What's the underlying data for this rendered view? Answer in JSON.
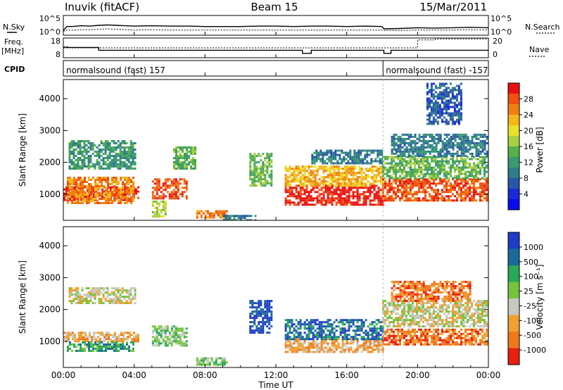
{
  "header": {
    "station": "Inuvik (fitACF)",
    "beam": "Beam 15",
    "date": "15/Mar/2011"
  },
  "left_labels": {
    "nsky": "N.Sky",
    "freq": "Freq.",
    "freq_unit": "[MHz]",
    "cpid": "CPID"
  },
  "right_labels": {
    "nsearch": "N.Search",
    "nave": "Nave"
  },
  "cpid_segments": [
    {
      "label": "normalsound (fast) 157",
      "start_hour": 0
    },
    {
      "label": "normalsound (fast) -157",
      "start_hour": 18.05
    }
  ],
  "chart_data": [
    {
      "type": "line",
      "name": "noise",
      "ytick_left": [
        "10^5",
        "10^0"
      ],
      "ytick_right": [
        "10^5",
        "10^0"
      ],
      "x": [
        0,
        0.2,
        0.5,
        1,
        1.5,
        2,
        2.5,
        3,
        3.5,
        4,
        5,
        6,
        7,
        8,
        9,
        10,
        11,
        12,
        13,
        14,
        15,
        16,
        17,
        18,
        18.1,
        19,
        20,
        21,
        22,
        23,
        24
      ],
      "sky": [
        1.2,
        2.2,
        2.2,
        2.4,
        2.3,
        2.5,
        2.6,
        2.5,
        2.4,
        2.3,
        2.4,
        2.3,
        2.3,
        2.2,
        2.2,
        2.2,
        2.3,
        2.3,
        2.2,
        2.3,
        2.3,
        2.2,
        2.3,
        2.2,
        1.6,
        1.7,
        1.9,
        1.8,
        1.9,
        2.0,
        1.9
      ],
      "search": [
        1.0,
        1.3,
        1.3,
        1.4,
        1.4,
        1.5,
        1.6,
        1.5,
        1.4,
        1.3,
        1.4,
        1.3,
        1.3,
        1.3,
        1.3,
        1.3,
        1.3,
        1.3,
        1.3,
        1.3,
        1.3,
        1.3,
        1.3,
        1.3,
        1.2,
        1.2,
        1.3,
        1.3,
        1.3,
        1.4,
        1.3
      ]
    },
    {
      "type": "line",
      "name": "frequency",
      "ytick_left": [
        "18",
        "8"
      ],
      "ytick_right": [
        "20",
        "0"
      ],
      "ylim_left": [
        8,
        18
      ],
      "ylim_right": [
        0,
        20
      ],
      "x": [
        0,
        0.25,
        1.5,
        2,
        3,
        6,
        9,
        11,
        13,
        13.5,
        14,
        15,
        16,
        17,
        18,
        18.1,
        18.5,
        19,
        20,
        21,
        22,
        24
      ],
      "freq": [
        13.4,
        13.2,
        13.2,
        11.8,
        11.8,
        11.8,
        11.8,
        11.8,
        11.8,
        10.2,
        11.8,
        11.8,
        11.8,
        11.8,
        11.8,
        10.2,
        11.8,
        11.8,
        11.8,
        11.8,
        11.8,
        11.8
      ],
      "nave": [
        10,
        10,
        10,
        10,
        10,
        10,
        10,
        10,
        10,
        10,
        10,
        10,
        10,
        10,
        10,
        10,
        10,
        10,
        18,
        19,
        19,
        19
      ]
    },
    {
      "type": "heatmap",
      "name": "power",
      "ylabel": "Slant Range [km]",
      "yticks": [
        1000,
        2000,
        3000,
        4000
      ],
      "ylim": [
        180,
        4600
      ],
      "xlim": [
        0,
        24
      ],
      "colorbar": {
        "label": "Power [dB]",
        "ticks": [
          "28",
          "24",
          "20",
          "16",
          "12",
          "8",
          "4"
        ],
        "colors": [
          "#e81010",
          "#f05010",
          "#f07f10",
          "#f5b61a",
          "#e8e22a",
          "#a8d040",
          "#58b048",
          "#3a9a72",
          "#2e7d8a",
          "#2a56a8",
          "#1a2ad8",
          "#0a0af0"
        ]
      },
      "regions": [
        {
          "t0": 0.0,
          "t1": 4.2,
          "r0": 850,
          "r1": 1250,
          "level": 0
        },
        {
          "t0": 0.2,
          "t1": 4.0,
          "r0": 700,
          "r1": 1550,
          "level": 2
        },
        {
          "t0": 0.3,
          "t1": 4.0,
          "r0": 1800,
          "r1": 2700,
          "level": 7
        },
        {
          "t0": 5.0,
          "t1": 7.0,
          "r0": 900,
          "r1": 1500,
          "level": 1
        },
        {
          "t0": 5.0,
          "t1": 5.8,
          "r0": 300,
          "r1": 800,
          "level": 5
        },
        {
          "t0": 6.2,
          "t1": 7.4,
          "r0": 1800,
          "r1": 2500,
          "level": 6
        },
        {
          "t0": 7.5,
          "t1": 9.2,
          "r0": 250,
          "r1": 500,
          "level": 2
        },
        {
          "t0": 9.0,
          "t1": 10.8,
          "r0": 200,
          "r1": 350,
          "level": 8
        },
        {
          "t0": 10.5,
          "t1": 11.8,
          "r0": 1300,
          "r1": 2300,
          "level": 6
        },
        {
          "t0": 12.5,
          "t1": 18.0,
          "r0": 700,
          "r1": 1300,
          "level": 0
        },
        {
          "t0": 12.5,
          "t1": 18.0,
          "r0": 1300,
          "r1": 1900,
          "level": 3
        },
        {
          "t0": 14.0,
          "t1": 18.0,
          "r0": 2000,
          "r1": 2400,
          "level": 8
        },
        {
          "t0": 18.0,
          "t1": 24.0,
          "r0": 800,
          "r1": 1500,
          "level": 1
        },
        {
          "t0": 18.0,
          "t1": 24.0,
          "r0": 1500,
          "r1": 2200,
          "level": 6
        },
        {
          "t0": 18.5,
          "t1": 24.0,
          "r0": 2200,
          "r1": 2900,
          "level": 8
        },
        {
          "t0": 20.5,
          "t1": 22.5,
          "r0": 3200,
          "r1": 4500,
          "level": 9
        }
      ]
    },
    {
      "type": "heatmap",
      "name": "velocity",
      "ylabel": "Slant Range [km]",
      "xlabel": "Time UT",
      "xticks": [
        "00:00",
        "04:00",
        "08:00",
        "12:00",
        "16:00",
        "20:00",
        "00:00"
      ],
      "yticks": [
        1000,
        2000,
        3000,
        4000
      ],
      "ylim": [
        180,
        4600
      ],
      "xlim": [
        0,
        24
      ],
      "colorbar": {
        "label": "Velocity [m s⁻¹]",
        "ticks": [
          "1000",
          "500",
          "100",
          "25",
          "-25",
          "-100",
          "-500",
          "-1000"
        ],
        "colors": [
          "#1e3cc8",
          "#1a6a9a",
          "#28a858",
          "#76c43c",
          "#c8c8c0",
          "#f0a030",
          "#f07818",
          "#e82010"
        ]
      },
      "regions": [
        {
          "t0": 0.0,
          "t1": 4.2,
          "r0": 1000,
          "r1": 1300,
          "level": 5
        },
        {
          "t0": 0.2,
          "t1": 4.0,
          "r0": 700,
          "r1": 1000,
          "level": 2
        },
        {
          "t0": 0.3,
          "t1": 4.0,
          "r0": 2200,
          "r1": 2700,
          "level": 4
        },
        {
          "t0": 5.0,
          "t1": 7.0,
          "r0": 900,
          "r1": 1500,
          "level": 3
        },
        {
          "t0": 7.5,
          "t1": 9.2,
          "r0": 250,
          "r1": 500,
          "level": 3
        },
        {
          "t0": 10.5,
          "t1": 11.8,
          "r0": 1300,
          "r1": 2300,
          "level": 0
        },
        {
          "t0": 12.5,
          "t1": 18.0,
          "r0": 700,
          "r1": 1100,
          "level": 5
        },
        {
          "t0": 12.5,
          "t1": 18.0,
          "r0": 1100,
          "r1": 1700,
          "level": 1
        },
        {
          "t0": 18.0,
          "t1": 24.0,
          "r0": 900,
          "r1": 1400,
          "level": 6
        },
        {
          "t0": 18.0,
          "t1": 24.0,
          "r0": 1500,
          "r1": 2300,
          "level": 4
        },
        {
          "t0": 18.5,
          "t1": 23.0,
          "r0": 2300,
          "r1": 2900,
          "level": 6
        }
      ]
    }
  ]
}
